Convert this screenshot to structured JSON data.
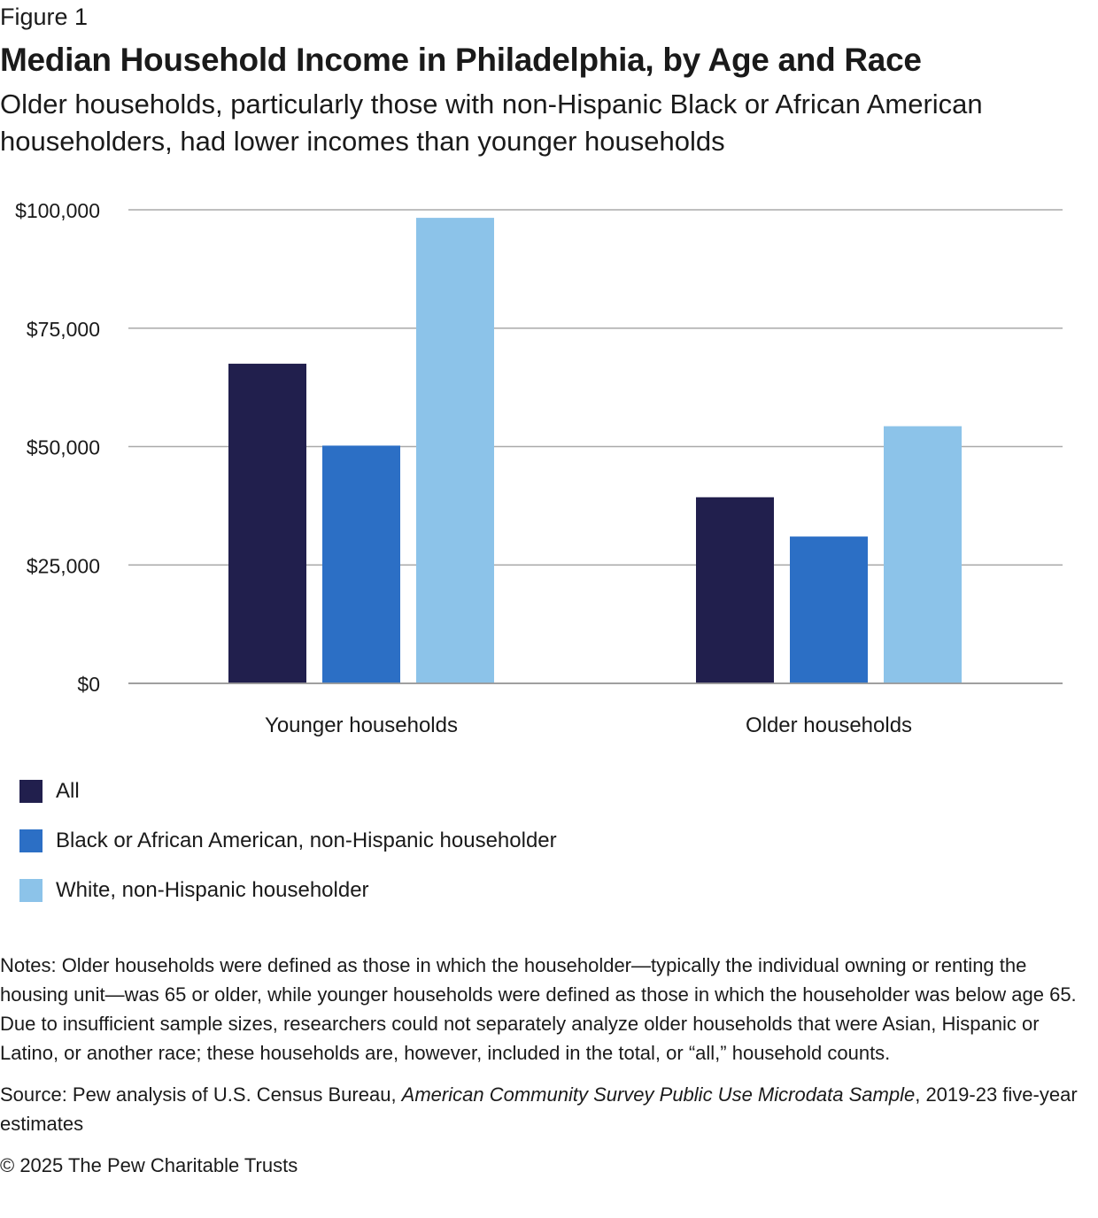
{
  "header": {
    "figure_label": "Figure 1",
    "title": "Median Household Income in Philadelphia, by Age and Race",
    "subtitle": "Older households, particularly those with non-Hispanic Black or African American householders, had lower incomes than younger households"
  },
  "chart_data": {
    "type": "bar",
    "categories": [
      "Younger households",
      "Older households"
    ],
    "series": [
      {
        "name": "All",
        "values": [
          67500,
          39300
        ],
        "color": "#211f4d"
      },
      {
        "name": "Black or African American, non-Hispanic householder",
        "values": [
          50200,
          31000
        ],
        "color": "#2c6fc5"
      },
      {
        "name": "White, non-Hispanic householder",
        "values": [
          98300,
          54300
        ],
        "color": "#8cc3e9"
      }
    ],
    "ylim": [
      0,
      100000
    ],
    "yticks": [
      0,
      25000,
      50000,
      75000,
      100000
    ],
    "ytick_labels": [
      "$0",
      "$25,000",
      "$50,000",
      "$75,000",
      "$100,000"
    ],
    "grid": true,
    "legend_position": "bottom-left"
  },
  "footer": {
    "notes": "Notes: Older households were defined as those in which the householder—typically the individual owning or renting the housing unit—was 65 or older, while younger households were defined as those in which the householder was below age 65. Due to insufficient sample sizes, researchers could not separately analyze older households that were Asian, Hispanic or Latino, or another race; these households are, however, included in the total, or “all,” household counts.",
    "source_prefix": "Source: Pew analysis of U.S. Census Bureau, ",
    "source_title": "American Community Survey Public Use Microdata Sample",
    "source_suffix": ", 2019-23 five-year estimates",
    "copyright": "© 2025 The Pew Charitable Trusts"
  }
}
